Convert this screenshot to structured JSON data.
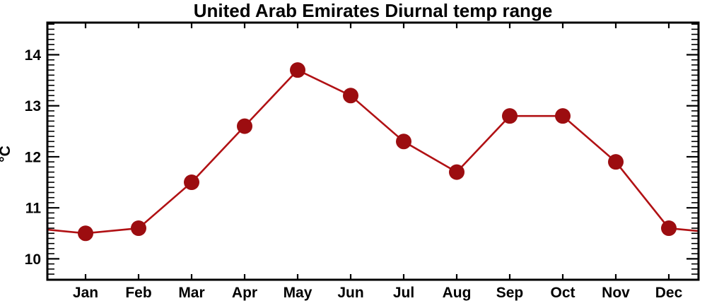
{
  "chart_data": {
    "type": "line",
    "title": "United Arab Emirates Diurnal temp range",
    "xlabel": "",
    "ylabel": "°C",
    "categories": [
      "Jan",
      "Feb",
      "Mar",
      "Apr",
      "May",
      "Jun",
      "Jul",
      "Aug",
      "Sep",
      "Oct",
      "Nov",
      "Dec"
    ],
    "values": [
      10.5,
      10.6,
      11.5,
      12.6,
      13.7,
      13.2,
      12.3,
      11.7,
      12.8,
      12.8,
      11.9,
      10.6
    ],
    "ylim": [
      9.59,
      14.63
    ],
    "yticks_major": [
      10,
      11,
      12,
      13,
      14
    ],
    "ytick_minor_step": 0.1,
    "grid": false,
    "legend": "none",
    "line_wraps_to_plot_edges": true,
    "marker_shape": "filled-circle",
    "colors": {
      "line": "#B11114",
      "marker": "#9C0D10",
      "frame": "#000000",
      "text": "#000000",
      "background": "#FFFFFF"
    }
  }
}
